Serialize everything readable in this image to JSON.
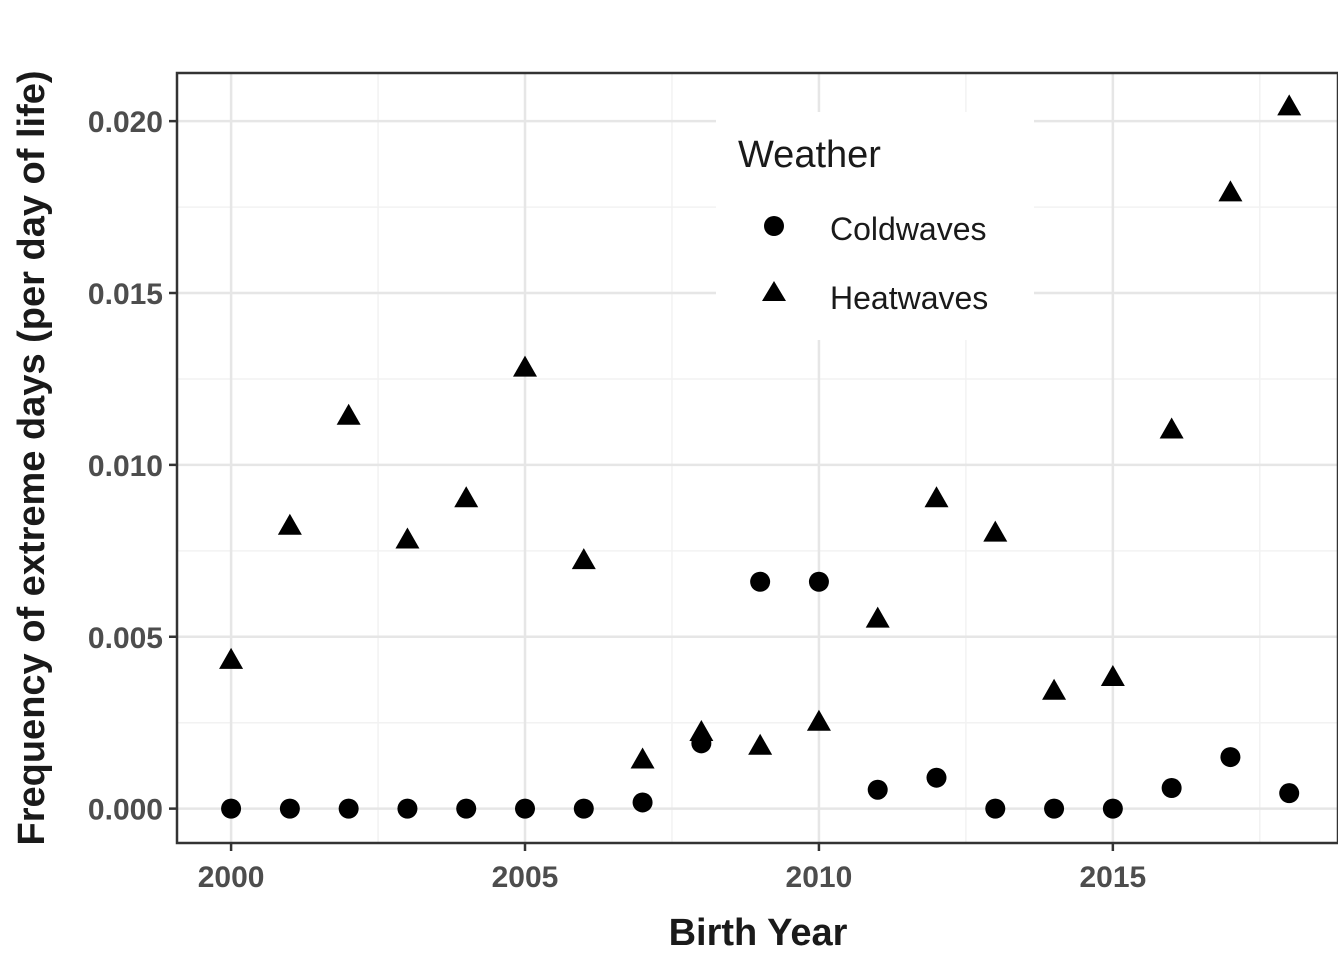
{
  "chart_data": {
    "type": "scatter",
    "xlabel": "Birth Year",
    "ylabel": "Frequency of extreme days (per day of life)",
    "xlim": [
      1999.08,
      2018.83
    ],
    "ylim": [
      -0.001,
      0.0214
    ],
    "x_ticks": [
      2000,
      2005,
      2010,
      2015
    ],
    "x_tick_labels": [
      "2000",
      "2005",
      "2010",
      "2015"
    ],
    "y_ticks": [
      0.0,
      0.005,
      0.01,
      0.015,
      0.02
    ],
    "y_tick_labels": [
      "0.000",
      "0.005",
      "0.010",
      "0.015",
      "0.020"
    ],
    "grid": true,
    "legend": {
      "title": "Weather",
      "placement": "top-center"
    },
    "series": [
      {
        "name": "Coldwaves",
        "marker": "circle",
        "color": "#000000",
        "x": [
          2000,
          2001,
          2002,
          2003,
          2004,
          2005,
          2006,
          2007,
          2008,
          2009,
          2010,
          2011,
          2012,
          2013,
          2014,
          2015,
          2016,
          2017,
          2018
        ],
        "y": [
          0.0,
          0.0,
          0.0,
          0.0,
          0.0,
          0.0,
          0.0,
          0.00018,
          0.0019,
          0.0066,
          0.0066,
          0.00055,
          0.0009,
          0.0,
          0.0,
          0.0,
          0.0006,
          0.0015,
          0.00045
        ]
      },
      {
        "name": "Heatwaves",
        "marker": "triangle",
        "color": "#000000",
        "x": [
          2000,
          2001,
          2002,
          2003,
          2004,
          2005,
          2006,
          2007,
          2008,
          2009,
          2010,
          2011,
          2012,
          2013,
          2014,
          2015,
          2016,
          2017,
          2018
        ],
        "y": [
          0.0043,
          0.0082,
          0.0114,
          0.0078,
          0.009,
          0.0128,
          0.0072,
          0.0014,
          0.0022,
          0.0018,
          0.0025,
          0.0055,
          0.009,
          0.008,
          0.0034,
          0.0038,
          0.011,
          0.0179,
          0.0204
        ]
      }
    ]
  }
}
